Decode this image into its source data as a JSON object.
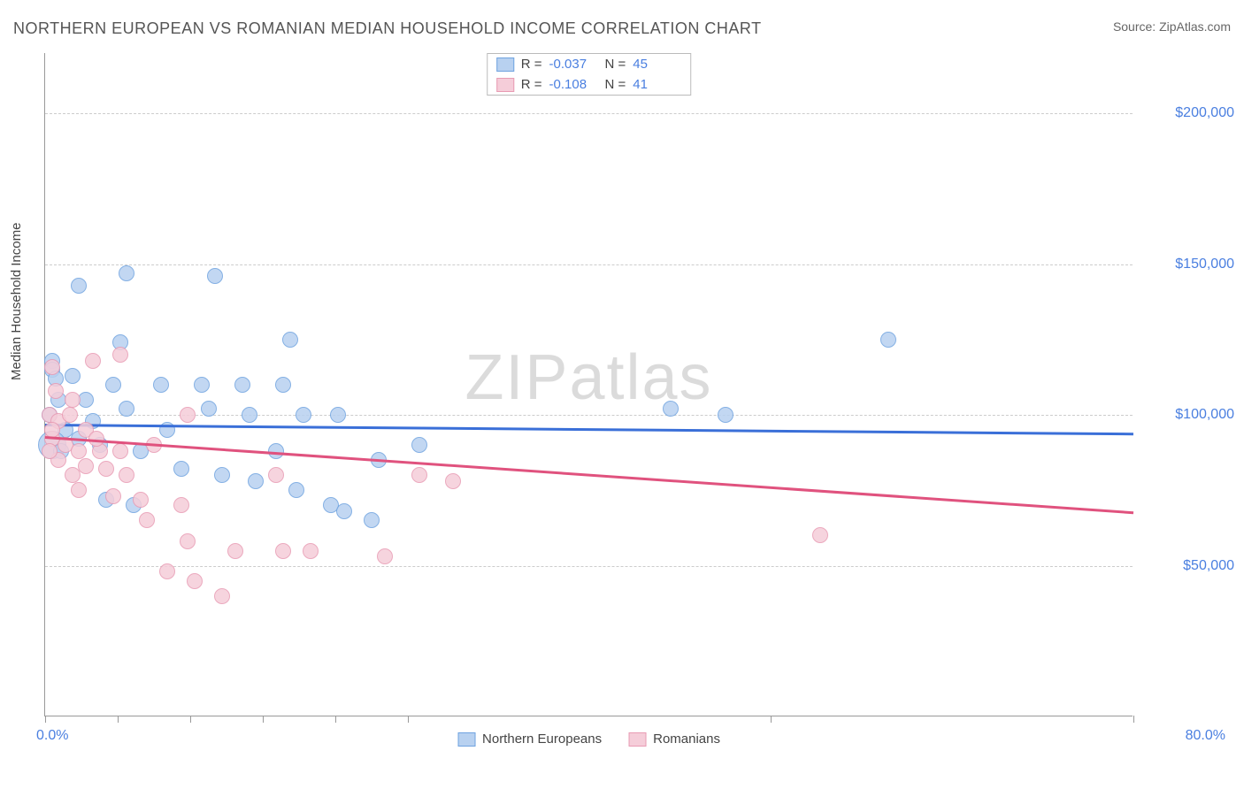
{
  "title": "NORTHERN EUROPEAN VS ROMANIAN MEDIAN HOUSEHOLD INCOME CORRELATION CHART",
  "source_prefix": "Source: ",
  "source_name": "ZipAtlas.com",
  "ylabel": "Median Household Income",
  "watermark": "ZIPatlas",
  "chart": {
    "type": "scatter",
    "xlim": [
      0,
      80
    ],
    "ylim": [
      0,
      220000
    ],
    "x_start_label": "0.0%",
    "x_end_label": "80.0%",
    "x_ticks_pct": [
      0,
      6.67,
      13.33,
      20,
      26.67,
      33.33,
      66.67,
      100
    ],
    "y_gridlines": [
      {
        "value": 50000,
        "label": "$50,000"
      },
      {
        "value": 100000,
        "label": "$100,000"
      },
      {
        "value": 150000,
        "label": "$150,000"
      },
      {
        "value": 200000,
        "label": "$200,000"
      }
    ],
    "background_color": "#ffffff",
    "grid_color": "#cccccc",
    "axis_color": "#999999",
    "tick_label_color": "#4a7fe0",
    "series": [
      {
        "id": "northern_europeans",
        "label": "Northern Europeans",
        "fill": "#b8d1f0",
        "stroke": "#6fa3e0",
        "trend_color": "#3a6fd8",
        "radius": 9,
        "R": "-0.037",
        "N": "45",
        "trend": {
          "x1": 0,
          "y1": 97000,
          "x2": 80,
          "y2": 94000
        },
        "points": [
          {
            "x": 2.5,
            "y": 143000
          },
          {
            "x": 6.0,
            "y": 147000
          },
          {
            "x": 12.5,
            "y": 146000
          },
          {
            "x": 62.0,
            "y": 125000
          },
          {
            "x": 18.0,
            "y": 125000
          },
          {
            "x": 5.5,
            "y": 124000
          },
          {
            "x": 0.5,
            "y": 118000
          },
          {
            "x": 0.5,
            "y": 115000
          },
          {
            "x": 0.8,
            "y": 112000
          },
          {
            "x": 2.0,
            "y": 113000
          },
          {
            "x": 5.0,
            "y": 110000
          },
          {
            "x": 8.5,
            "y": 110000
          },
          {
            "x": 11.5,
            "y": 110000
          },
          {
            "x": 14.5,
            "y": 110000
          },
          {
            "x": 17.5,
            "y": 110000
          },
          {
            "x": 1.0,
            "y": 105000
          },
          {
            "x": 3.0,
            "y": 105000
          },
          {
            "x": 6.0,
            "y": 102000
          },
          {
            "x": 12.0,
            "y": 102000
          },
          {
            "x": 15.0,
            "y": 100000
          },
          {
            "x": 19.0,
            "y": 100000
          },
          {
            "x": 21.5,
            "y": 100000
          },
          {
            "x": 50.0,
            "y": 100000
          },
          {
            "x": 46.0,
            "y": 102000
          },
          {
            "x": 1.5,
            "y": 95000
          },
          {
            "x": 2.5,
            "y": 92000
          },
          {
            "x": 4.0,
            "y": 90000
          },
          {
            "x": 7.0,
            "y": 88000
          },
          {
            "x": 27.5,
            "y": 90000
          },
          {
            "x": 10.0,
            "y": 82000
          },
          {
            "x": 13.0,
            "y": 80000
          },
          {
            "x": 15.5,
            "y": 78000
          },
          {
            "x": 18.5,
            "y": 75000
          },
          {
            "x": 24.5,
            "y": 85000
          },
          {
            "x": 4.5,
            "y": 72000
          },
          {
            "x": 6.5,
            "y": 70000
          },
          {
            "x": 21.0,
            "y": 70000
          },
          {
            "x": 22.0,
            "y": 68000
          },
          {
            "x": 24.0,
            "y": 65000
          },
          {
            "x": 17.0,
            "y": 88000
          },
          {
            "x": 9.0,
            "y": 95000
          },
          {
            "x": 0.3,
            "y": 100000
          },
          {
            "x": 0.5,
            "y": 90000,
            "r": 16
          },
          {
            "x": 1.2,
            "y": 88000
          },
          {
            "x": 3.5,
            "y": 98000
          }
        ]
      },
      {
        "id": "romanians",
        "label": "Romanians",
        "fill": "#f5cdd9",
        "stroke": "#e89bb3",
        "trend_color": "#e0527e",
        "radius": 9,
        "R": "-0.108",
        "N": "41",
        "trend": {
          "x1": 0,
          "y1": 93000,
          "x2": 80,
          "y2": 68000
        },
        "points": [
          {
            "x": 3.5,
            "y": 118000
          },
          {
            "x": 5.5,
            "y": 120000
          },
          {
            "x": 0.5,
            "y": 116000
          },
          {
            "x": 0.8,
            "y": 108000
          },
          {
            "x": 2.0,
            "y": 105000
          },
          {
            "x": 0.3,
            "y": 100000
          },
          {
            "x": 1.0,
            "y": 98000
          },
          {
            "x": 3.0,
            "y": 95000
          },
          {
            "x": 10.5,
            "y": 100000
          },
          {
            "x": 0.5,
            "y": 92000
          },
          {
            "x": 1.5,
            "y": 90000
          },
          {
            "x": 2.5,
            "y": 88000
          },
          {
            "x": 4.0,
            "y": 88000
          },
          {
            "x": 5.5,
            "y": 88000
          },
          {
            "x": 8.0,
            "y": 90000
          },
          {
            "x": 3.0,
            "y": 83000
          },
          {
            "x": 4.5,
            "y": 82000
          },
          {
            "x": 6.0,
            "y": 80000
          },
          {
            "x": 17.0,
            "y": 80000
          },
          {
            "x": 27.5,
            "y": 80000
          },
          {
            "x": 30.0,
            "y": 78000
          },
          {
            "x": 2.5,
            "y": 75000
          },
          {
            "x": 5.0,
            "y": 73000
          },
          {
            "x": 7.0,
            "y": 72000
          },
          {
            "x": 10.0,
            "y": 70000
          },
          {
            "x": 7.5,
            "y": 65000
          },
          {
            "x": 10.5,
            "y": 58000
          },
          {
            "x": 14.0,
            "y": 55000
          },
          {
            "x": 17.5,
            "y": 55000
          },
          {
            "x": 19.5,
            "y": 55000
          },
          {
            "x": 25.0,
            "y": 53000
          },
          {
            "x": 57.0,
            "y": 60000
          },
          {
            "x": 13.0,
            "y": 40000
          },
          {
            "x": 11.0,
            "y": 45000
          },
          {
            "x": 9.0,
            "y": 48000
          },
          {
            "x": 1.0,
            "y": 85000
          },
          {
            "x": 2.0,
            "y": 80000
          },
          {
            "x": 0.5,
            "y": 95000
          },
          {
            "x": 1.8,
            "y": 100000
          },
          {
            "x": 3.8,
            "y": 92000
          },
          {
            "x": 0.3,
            "y": 88000
          }
        ]
      }
    ]
  },
  "legend_top": {
    "R_label": "R =",
    "N_label": "N ="
  }
}
